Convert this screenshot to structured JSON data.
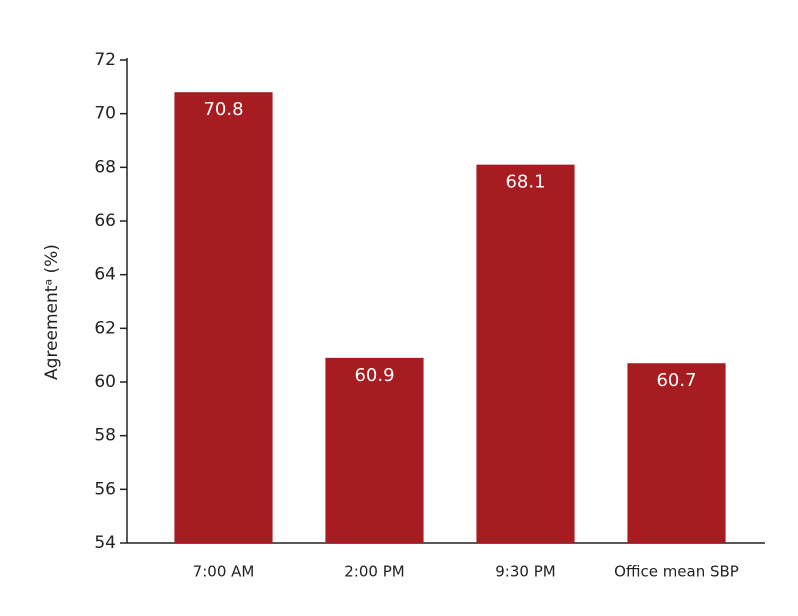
{
  "chart_data": {
    "type": "bar",
    "y_label": "Agreementᵃ (%)",
    "categories": [
      "7:00 AM",
      "2:00 PM",
      "9:30 PM",
      "Office mean SBP"
    ],
    "values": [
      70.8,
      60.9,
      68.1,
      60.7
    ],
    "color": "#a61c20",
    "ylim": [
      54,
      72
    ],
    "yticks": [
      54,
      56,
      58,
      60,
      62,
      64,
      66,
      68,
      70,
      72
    ],
    "grid": false
  }
}
